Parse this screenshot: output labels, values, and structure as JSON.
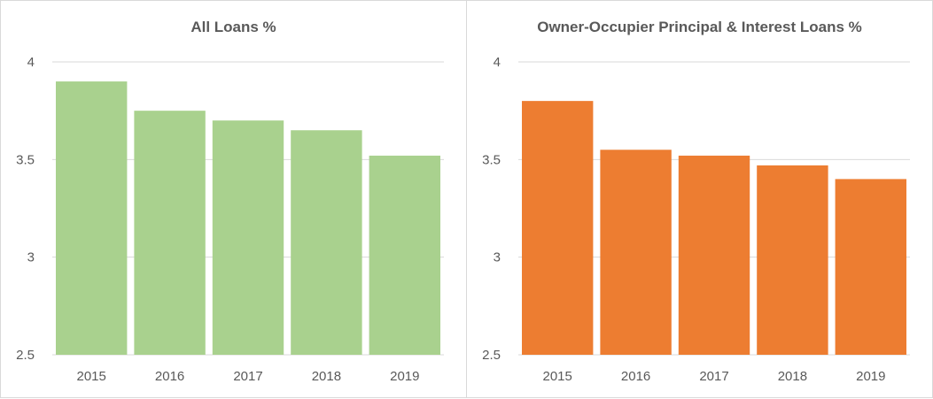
{
  "chart_data": [
    {
      "type": "bar",
      "title": "All Loans %",
      "categories": [
        "2015",
        "2016",
        "2017",
        "2018",
        "2019"
      ],
      "values": [
        3.9,
        3.75,
        3.7,
        3.65,
        3.52
      ],
      "ylim": [
        2.5,
        4
      ],
      "yticks": [
        "2.5",
        "3",
        "3.5",
        "4"
      ],
      "color": "#a9d18e",
      "grid": true
    },
    {
      "type": "bar",
      "title": "Owner-Occupier Principal & Interest Loans %",
      "categories": [
        "2015",
        "2016",
        "2017",
        "2018",
        "2019"
      ],
      "values": [
        3.8,
        3.55,
        3.52,
        3.47,
        3.4
      ],
      "ylim": [
        2.5,
        4
      ],
      "yticks": [
        "2.5",
        "3",
        "3.5",
        "4"
      ],
      "color": "#ed7d31",
      "grid": true
    }
  ]
}
